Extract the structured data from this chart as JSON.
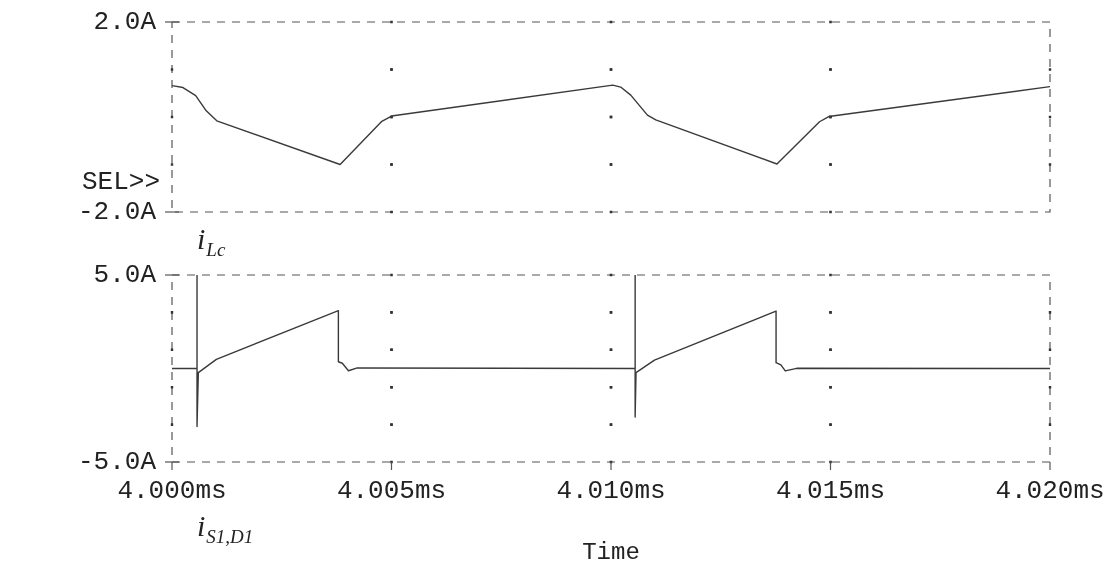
{
  "chart_data": [
    {
      "type": "line",
      "tick_labels": "y",
      "grid": true,
      "xlim": [
        4.0,
        4.02
      ],
      "xticks": [
        {
          "value": 4.0,
          "label": null
        },
        {
          "value": 4.005,
          "label": null
        },
        {
          "value": 4.01,
          "label": null
        },
        {
          "value": 4.015,
          "label": null
        },
        {
          "value": 4.02,
          "label": null
        }
      ],
      "ylim": [
        -2,
        2
      ],
      "yticks": [
        {
          "value": -2,
          "label": "-2.0A"
        },
        {
          "value": -1,
          "label": null
        },
        {
          "value": 0,
          "label": null
        },
        {
          "value": 1,
          "label": null
        },
        {
          "value": 2,
          "label": "2.0A"
        }
      ],
      "annotations": [
        "SEL>>"
      ],
      "series": [
        {
          "name": "i$_{Lc}$",
          "color": "#3a3a3a",
          "x": [
            4.0,
            4.00025,
            4.00054,
            4.00078,
            4.00102,
            4.00383,
            4.00478,
            4.005,
            4.01004,
            4.01022,
            4.01045,
            4.01083,
            4.01102,
            4.01378,
            4.01475,
            4.01496,
            4.02
          ],
          "values": [
            0.66,
            0.62,
            0.45,
            0.13,
            -0.08,
            -1.0,
            -0.09,
            0.02,
            0.67,
            0.63,
            0.46,
            0.04,
            -0.06,
            -0.99,
            -0.1,
            0.01,
            0.64
          ]
        }
      ]
    },
    {
      "type": "line",
      "grid": true,
      "xlabel": "Time",
      "xlim": [
        4.0,
        4.02
      ],
      "xticks": [
        {
          "value": 4.0,
          "label": "4.000ms"
        },
        {
          "value": 4.005,
          "label": "4.005ms"
        },
        {
          "value": 4.01,
          "label": "4.010ms"
        },
        {
          "value": 4.015,
          "label": "4.015ms"
        },
        {
          "value": 4.02,
          "label": "4.020ms"
        }
      ],
      "ylim": [
        -5,
        5
      ],
      "yticks": [
        {
          "value": -5,
          "label": "-5.0A"
        },
        {
          "value": -3,
          "label": null
        },
        {
          "value": -1,
          "label": null
        },
        {
          "value": 1,
          "label": null
        },
        {
          "value": 3,
          "label": null
        },
        {
          "value": 5,
          "label": "5.0A"
        }
      ],
      "series": [
        {
          "name": "i$_{S1,D1}$",
          "color": "#3a3a3a",
          "x": [
            4.0,
            4.00057,
            4.00057,
            4.00057,
            4.0006,
            4.00101,
            4.00379,
            4.00379,
            4.00388,
            4.00402,
            4.00422,
            4.01055,
            4.01055,
            4.01055,
            4.01057,
            4.01099,
            4.01376,
            4.01376,
            4.01387,
            4.01397,
            4.01423,
            4.02
          ],
          "values": [
            0,
            0,
            5.0,
            -3.1,
            -0.22,
            0.49,
            3.09,
            0.36,
            0.28,
            -0.12,
            0.03,
            0,
            5.0,
            -2.6,
            -0.22,
            0.45,
            3.07,
            0.31,
            0.19,
            -0.13,
            0.01,
            0
          ]
        }
      ]
    }
  ]
}
